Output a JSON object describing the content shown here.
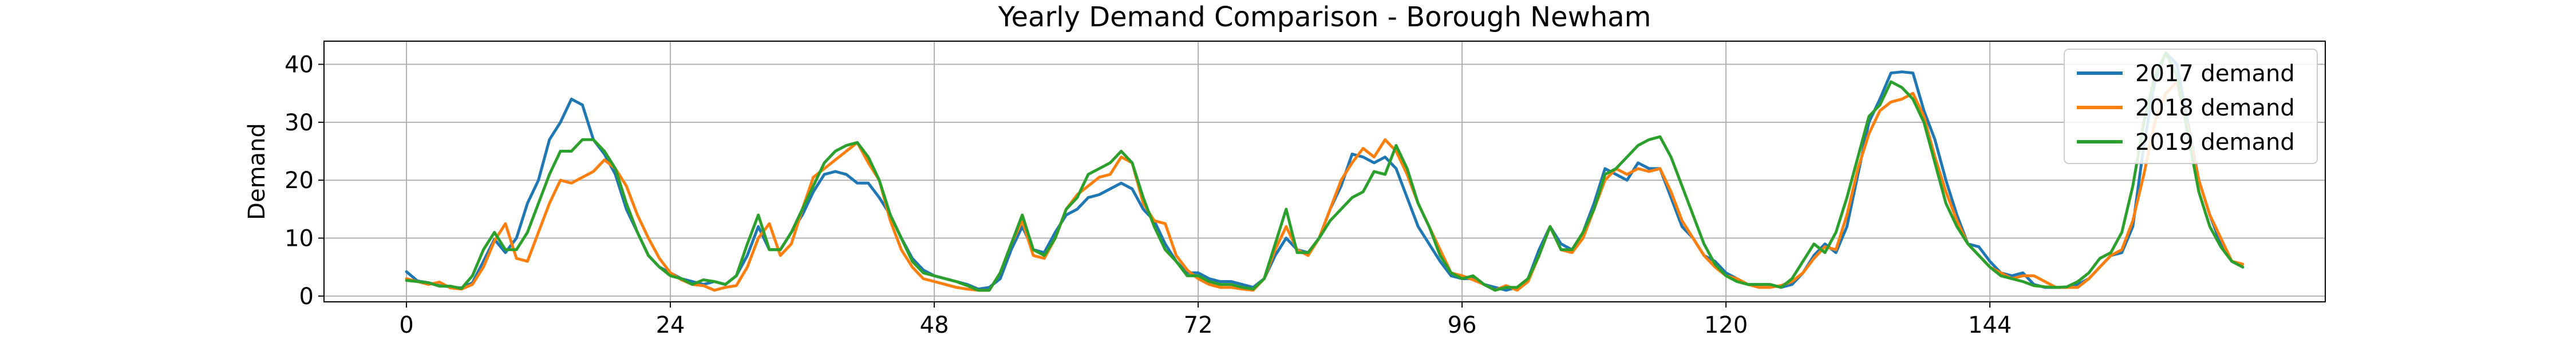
{
  "chart_data": {
    "type": "line",
    "title": "Yearly Demand Comparison - Borough Newham",
    "xlabel": "",
    "ylabel": "Demand",
    "xlim": [
      -7.5,
      174.5
    ],
    "ylim": [
      -1,
      44
    ],
    "xticks": [
      0,
      24,
      48,
      72,
      96,
      120,
      144
    ],
    "yticks": [
      0,
      10,
      20,
      30,
      40
    ],
    "grid": true,
    "legend_position": "upper-right",
    "x_start": 0,
    "series": [
      {
        "name": "2017 demand",
        "color": "#1f77b4",
        "values": [
          4.2,
          2.6,
          2.3,
          1.8,
          1.6,
          1.4,
          2.3,
          6.0,
          9.8,
          7.5,
          10.0,
          16.0,
          20.0,
          27.0,
          30.0,
          34.0,
          33.0,
          27.0,
          24.5,
          21.0,
          15.0,
          11.0,
          7.0,
          5.0,
          4.0,
          3.0,
          2.5,
          2.0,
          2.5,
          2.0,
          3.5,
          7.0,
          12.0,
          8.0,
          8.0,
          11.0,
          14.0,
          18.0,
          21.0,
          21.5,
          21.0,
          19.5,
          19.5,
          17.0,
          14.0,
          10.0,
          6.5,
          4.5,
          3.5,
          3.0,
          2.5,
          2.0,
          1.2,
          1.5,
          3.0,
          8.0,
          12.0,
          8.0,
          7.5,
          11.0,
          14.0,
          15.0,
          17.0,
          17.5,
          18.5,
          19.5,
          18.5,
          15.0,
          13.0,
          9.0,
          6.0,
          4.0,
          4.0,
          3.0,
          2.5,
          2.5,
          2.0,
          1.5,
          3.0,
          7.0,
          10.0,
          8.0,
          7.5,
          10.0,
          15.0,
          19.0,
          24.5,
          24.0,
          23.0,
          24.0,
          22.0,
          17.0,
          12.0,
          9.0,
          6.0,
          3.5,
          3.0,
          3.0,
          2.0,
          1.5,
          1.0,
          1.5,
          3.0,
          8.0,
          12.0,
          9.0,
          8.0,
          11.0,
          16.0,
          22.0,
          21.0,
          20.0,
          23.0,
          22.0,
          22.0,
          17.0,
          12.0,
          10.0,
          7.0,
          6.0,
          4.0,
          3.0,
          2.0,
          2.0,
          2.0,
          1.5,
          2.0,
          4.0,
          7.0,
          9.0,
          7.5,
          12.0,
          21.0,
          30.0,
          34.0,
          38.5,
          38.7,
          38.5,
          32.0,
          27.0,
          20.0,
          14.0,
          9.0,
          8.5,
          6.0,
          4.0,
          3.5,
          4.0,
          2.0,
          1.5,
          1.5,
          1.5,
          2.0,
          3.0,
          5.0,
          7.0,
          7.5,
          12.0,
          26.0,
          37.0,
          42.0,
          40.0,
          30.0,
          20.0,
          14.0,
          9.0,
          6.0,
          5.0
        ]
      },
      {
        "name": "2018 demand",
        "color": "#ff7f0e",
        "values": [
          3.0,
          2.5,
          2.0,
          2.4,
          1.4,
          1.2,
          2.0,
          5.0,
          9.5,
          12.5,
          6.5,
          6.0,
          11.0,
          16.0,
          20.0,
          19.5,
          20.5,
          21.5,
          23.5,
          22.0,
          19.0,
          14.0,
          10.0,
          6.5,
          4.0,
          2.8,
          2.0,
          1.8,
          1.0,
          1.5,
          1.8,
          5.0,
          10.0,
          12.5,
          7.0,
          9.0,
          15.0,
          20.5,
          22.0,
          23.5,
          25.0,
          26.5,
          23.0,
          20.0,
          13.0,
          8.0,
          5.0,
          3.0,
          2.5,
          2.0,
          1.5,
          1.2,
          1.0,
          1.0,
          4.0,
          9.0,
          13.0,
          7.0,
          6.5,
          10.0,
          15.0,
          17.5,
          19.0,
          20.5,
          21.0,
          24.0,
          23.0,
          16.0,
          13.0,
          12.5,
          7.0,
          4.5,
          3.0,
          2.0,
          1.5,
          1.5,
          1.2,
          1.0,
          3.0,
          8.0,
          12.0,
          8.0,
          7.0,
          10.0,
          15.0,
          20.0,
          23.0,
          25.5,
          24.0,
          27.0,
          25.0,
          21.0,
          16.0,
          12.0,
          8.0,
          4.0,
          3.5,
          2.8,
          2.0,
          1.0,
          1.8,
          1.0,
          2.5,
          7.0,
          12.0,
          8.0,
          7.5,
          10.0,
          15.0,
          20.0,
          22.0,
          21.0,
          22.0,
          21.5,
          22.0,
          18.0,
          13.0,
          10.0,
          7.0,
          5.0,
          3.5,
          3.0,
          2.0,
          1.5,
          1.5,
          1.8,
          2.5,
          4.0,
          6.5,
          8.5,
          8.0,
          14.0,
          22.0,
          28.0,
          32.0,
          33.5,
          34.0,
          35.0,
          31.0,
          24.0,
          18.0,
          13.0,
          9.0,
          7.0,
          5.0,
          4.0,
          3.0,
          3.5,
          3.5,
          2.5,
          1.5,
          1.5,
          1.5,
          3.0,
          5.0,
          7.0,
          8.0,
          13.0,
          21.0,
          30.0,
          35.0,
          37.0,
          29.0,
          20.0,
          14.0,
          10.0,
          6.0,
          5.5
        ]
      },
      {
        "name": "2019 demand",
        "color": "#2ca02c",
        "values": [
          2.7,
          2.5,
          2.3,
          1.7,
          1.7,
          1.3,
          3.5,
          8.0,
          11.0,
          8.0,
          8.0,
          11.0,
          16.0,
          21.0,
          25.0,
          25.0,
          27.0,
          27.0,
          25.0,
          22.0,
          16.0,
          11.0,
          7.0,
          5.0,
          3.5,
          3.0,
          2.0,
          2.8,
          2.5,
          2.0,
          3.5,
          9.0,
          14.0,
          8.0,
          8.0,
          11.0,
          15.0,
          19.0,
          23.0,
          25.0,
          26.0,
          26.5,
          24.0,
          20.0,
          14.0,
          10.0,
          6.0,
          4.0,
          3.5,
          3.0,
          2.5,
          1.8,
          1.0,
          1.0,
          4.0,
          9.0,
          14.0,
          8.0,
          7.0,
          10.0,
          15.0,
          17.0,
          21.0,
          22.0,
          23.0,
          25.0,
          23.0,
          17.0,
          12.0,
          8.0,
          6.0,
          3.5,
          3.5,
          2.5,
          2.0,
          2.0,
          1.5,
          1.2,
          3.0,
          9.0,
          15.0,
          7.5,
          7.5,
          10.0,
          13.0,
          15.0,
          17.0,
          18.0,
          21.5,
          21.0,
          26.0,
          22.0,
          16.0,
          12.0,
          7.0,
          4.0,
          3.0,
          3.5,
          2.0,
          1.0,
          1.5,
          1.5,
          3.0,
          7.0,
          12.0,
          8.0,
          8.0,
          11.0,
          15.0,
          21.0,
          22.0,
          24.0,
          26.0,
          27.0,
          27.5,
          24.0,
          19.0,
          14.0,
          9.0,
          5.5,
          3.5,
          2.5,
          2.0,
          2.0,
          2.0,
          1.5,
          3.0,
          6.0,
          9.0,
          7.5,
          11.0,
          17.0,
          24.0,
          31.0,
          33.0,
          37.0,
          36.0,
          34.0,
          30.0,
          23.0,
          16.0,
          12.0,
          9.0,
          7.0,
          5.0,
          3.5,
          3.0,
          2.5,
          1.8,
          1.6,
          1.5,
          1.6,
          2.5,
          4.0,
          6.5,
          7.5,
          11.0,
          19.0,
          30.0,
          38.0,
          42.0,
          38.0,
          28.0,
          18.0,
          12.0,
          8.5,
          6.0,
          5.0
        ]
      }
    ]
  }
}
